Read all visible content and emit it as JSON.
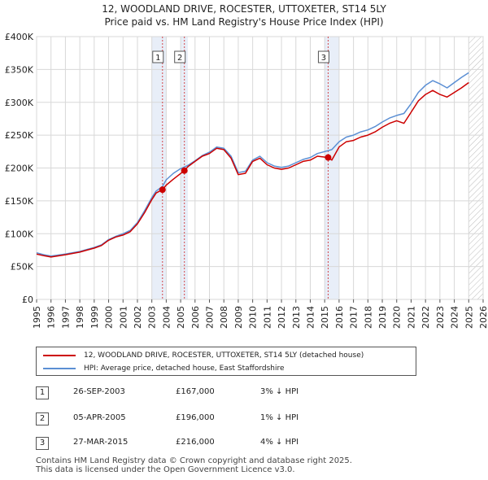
{
  "title": {
    "line1": "12, WOODLAND DRIVE, ROCESTER, UTTOXETER, ST14 5LY",
    "line2": "Price paid vs. HM Land Registry's House Price Index (HPI)"
  },
  "chart_data": {
    "type": "line",
    "x_ticks": [
      "1995",
      "1996",
      "1997",
      "1998",
      "1999",
      "2000",
      "2001",
      "2002",
      "2003",
      "2004",
      "2005",
      "2006",
      "2007",
      "2008",
      "2009",
      "2010",
      "2011",
      "2012",
      "2013",
      "2014",
      "2015",
      "2016",
      "2017",
      "2018",
      "2019",
      "2020",
      "2021",
      "2022",
      "2023",
      "2024",
      "2025",
      "2026"
    ],
    "y_ticks": [
      "£0",
      "£50K",
      "£100K",
      "£150K",
      "£200K",
      "£250K",
      "£300K",
      "£350K",
      "£400K"
    ],
    "xlim": [
      1995,
      2026
    ],
    "ylim": [
      0,
      400000
    ],
    "grid": true,
    "highlight_spans": [
      {
        "label": "1",
        "x0": 2003,
        "x1": 2004
      },
      {
        "label": "2",
        "x0": 2005,
        "x1": 2005.5
      },
      {
        "label": "3",
        "x0": 2015,
        "x1": 2016
      },
      {
        "label": "forecast",
        "x0": 2025,
        "x1": 2026,
        "hatched": true
      }
    ],
    "series": [
      {
        "name": "12, WOODLAND DRIVE, ROCESTER, UTTOXETER, ST14 5LY (detached house)",
        "color": "#cc0000",
        "points": [
          [
            1995,
            69000
          ],
          [
            1995.5,
            66500
          ],
          [
            1996,
            64500
          ],
          [
            1997,
            68000
          ],
          [
            1998,
            72000
          ],
          [
            1998.5,
            75000
          ],
          [
            1999,
            78000
          ],
          [
            1999.5,
            82000
          ],
          [
            2000,
            90000
          ],
          [
            2000.5,
            95000
          ],
          [
            2001,
            98000
          ],
          [
            2001.5,
            103000
          ],
          [
            2002,
            115000
          ],
          [
            2002.5,
            132000
          ],
          [
            2003,
            152000
          ],
          [
            2003.3,
            162000
          ],
          [
            2003.74,
            167000
          ],
          [
            2004,
            174000
          ],
          [
            2004.5,
            183000
          ],
          [
            2005.26,
            196000
          ],
          [
            2005.5,
            202000
          ],
          [
            2006,
            210000
          ],
          [
            2006.5,
            218000
          ],
          [
            2007,
            222000
          ],
          [
            2007.5,
            230000
          ],
          [
            2008,
            228000
          ],
          [
            2008.5,
            215000
          ],
          [
            2009,
            190000
          ],
          [
            2009.5,
            192000
          ],
          [
            2010,
            210000
          ],
          [
            2010.5,
            215000
          ],
          [
            2011,
            205000
          ],
          [
            2011.5,
            200000
          ],
          [
            2012,
            198000
          ],
          [
            2012.5,
            200000
          ],
          [
            2013,
            205000
          ],
          [
            2013.5,
            210000
          ],
          [
            2014,
            212000
          ],
          [
            2014.5,
            218000
          ],
          [
            2015.24,
            216000
          ],
          [
            2015.5,
            212000
          ],
          [
            2016,
            232000
          ],
          [
            2016.5,
            240000
          ],
          [
            2017,
            242000
          ],
          [
            2017.5,
            247000
          ],
          [
            2018,
            250000
          ],
          [
            2018.5,
            255000
          ],
          [
            2019,
            262000
          ],
          [
            2019.5,
            268000
          ],
          [
            2020,
            272000
          ],
          [
            2020.5,
            268000
          ],
          [
            2021,
            285000
          ],
          [
            2021.5,
            302000
          ],
          [
            2022,
            312000
          ],
          [
            2022.5,
            318000
          ],
          [
            2023,
            312000
          ],
          [
            2023.5,
            308000
          ],
          [
            2024,
            315000
          ],
          [
            2024.5,
            322000
          ],
          [
            2025,
            330000
          ]
        ]
      },
      {
        "name": "HPI: Average price, detached house, East Staffordshire",
        "color": "#5b8fd4",
        "points": [
          [
            1995,
            71000
          ],
          [
            1995.5,
            68000
          ],
          [
            1996,
            66000
          ],
          [
            1997,
            69000
          ],
          [
            1998,
            73000
          ],
          [
            1998.5,
            76000
          ],
          [
            1999,
            79000
          ],
          [
            1999.5,
            83000
          ],
          [
            2000,
            91000
          ],
          [
            2000.5,
            96000
          ],
          [
            2001,
            100000
          ],
          [
            2001.5,
            105000
          ],
          [
            2002,
            117000
          ],
          [
            2002.5,
            135000
          ],
          [
            2003,
            155000
          ],
          [
            2003.3,
            165000
          ],
          [
            2003.74,
            172000
          ],
          [
            2004,
            182000
          ],
          [
            2004.5,
            192000
          ],
          [
            2005,
            199000
          ],
          [
            2005.5,
            204000
          ],
          [
            2006,
            211000
          ],
          [
            2006.5,
            219000
          ],
          [
            2007,
            224000
          ],
          [
            2007.5,
            232000
          ],
          [
            2008,
            230000
          ],
          [
            2008.5,
            218000
          ],
          [
            2009,
            193000
          ],
          [
            2009.5,
            195000
          ],
          [
            2010,
            212000
          ],
          [
            2010.5,
            218000
          ],
          [
            2011,
            208000
          ],
          [
            2011.5,
            203000
          ],
          [
            2012,
            201000
          ],
          [
            2012.5,
            203000
          ],
          [
            2013,
            208000
          ],
          [
            2013.5,
            213000
          ],
          [
            2014,
            216000
          ],
          [
            2014.5,
            222000
          ],
          [
            2015,
            225000
          ],
          [
            2015.5,
            228000
          ],
          [
            2016,
            240000
          ],
          [
            2016.5,
            247000
          ],
          [
            2017,
            250000
          ],
          [
            2017.5,
            255000
          ],
          [
            2018,
            258000
          ],
          [
            2018.5,
            263000
          ],
          [
            2019,
            270000
          ],
          [
            2019.5,
            276000
          ],
          [
            2020,
            280000
          ],
          [
            2020.5,
            283000
          ],
          [
            2021,
            298000
          ],
          [
            2021.5,
            315000
          ],
          [
            2022,
            326000
          ],
          [
            2022.5,
            333000
          ],
          [
            2023,
            328000
          ],
          [
            2023.5,
            322000
          ],
          [
            2024,
            330000
          ],
          [
            2024.5,
            338000
          ],
          [
            2025,
            345000
          ]
        ]
      }
    ],
    "sales": [
      {
        "label": "1",
        "x": 2003.74,
        "price": 167000
      },
      {
        "label": "2",
        "x": 2005.26,
        "price": 196000
      },
      {
        "label": "3",
        "x": 2015.24,
        "price": 216000
      }
    ]
  },
  "legend": {
    "property": "12, WOODLAND DRIVE, ROCESTER, UTTOXETER, ST14 5LY (detached house)",
    "hpi": "HPI: Average price, detached house, East Staffordshire",
    "property_color": "#cc0000",
    "hpi_color": "#5b8fd4"
  },
  "sales_table": [
    {
      "num": "1",
      "date": "26-SEP-2003",
      "price": "£167,000",
      "hpi": "3% ↓ HPI"
    },
    {
      "num": "2",
      "date": "05-APR-2005",
      "price": "£196,000",
      "hpi": "1% ↓ HPI"
    },
    {
      "num": "3",
      "date": "27-MAR-2015",
      "price": "£216,000",
      "hpi": "4% ↓ HPI"
    }
  ],
  "footer": {
    "line1": "Contains HM Land Registry data © Crown copyright and database right 2025.",
    "line2": "This data is licensed under the Open Government Licence v3.0."
  }
}
